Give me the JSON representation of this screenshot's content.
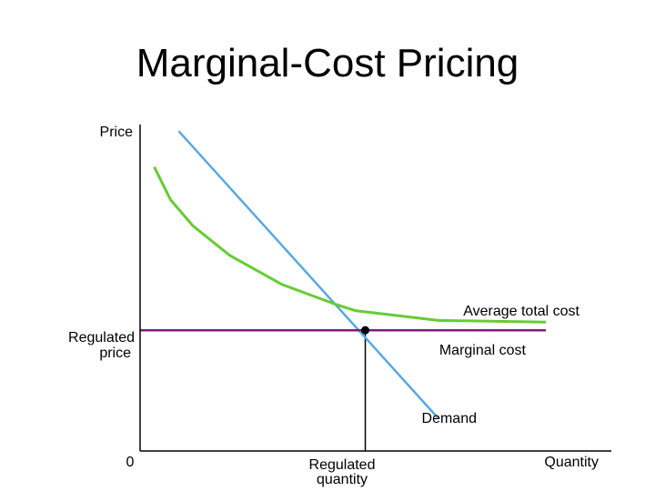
{
  "chart_data": {
    "type": "line",
    "title": "Marginal-Cost Pricing",
    "xlabel": "Quantity",
    "ylabel": "Price",
    "origin_label": "0",
    "x_tick_label_lines": [
      "Regulated",
      "quantity"
    ],
    "y_tick_label_lines": [
      "Regulated",
      "price"
    ],
    "grid": false,
    "xlim": [
      0,
      100
    ],
    "ylim": [
      0,
      100
    ],
    "series": [
      {
        "name": "Demand",
        "color": "#5aa8e0",
        "x": [
          9.5,
          73.5
        ],
        "y": [
          98,
          10
        ]
      },
      {
        "name": "Average total cost",
        "color": "#66cc33",
        "x": [
          3.5,
          7.5,
          13,
          22,
          35,
          48,
          53,
          73.5,
          100
        ],
        "y": [
          87,
          77,
          69,
          60,
          51,
          45,
          43,
          40,
          39.5
        ]
      },
      {
        "name": "Marginal cost",
        "color": "#7b1f7b",
        "x": [
          0,
          100
        ],
        "y": [
          37,
          37
        ]
      }
    ],
    "regulated_point": {
      "x": 55.5,
      "y": 37
    }
  }
}
